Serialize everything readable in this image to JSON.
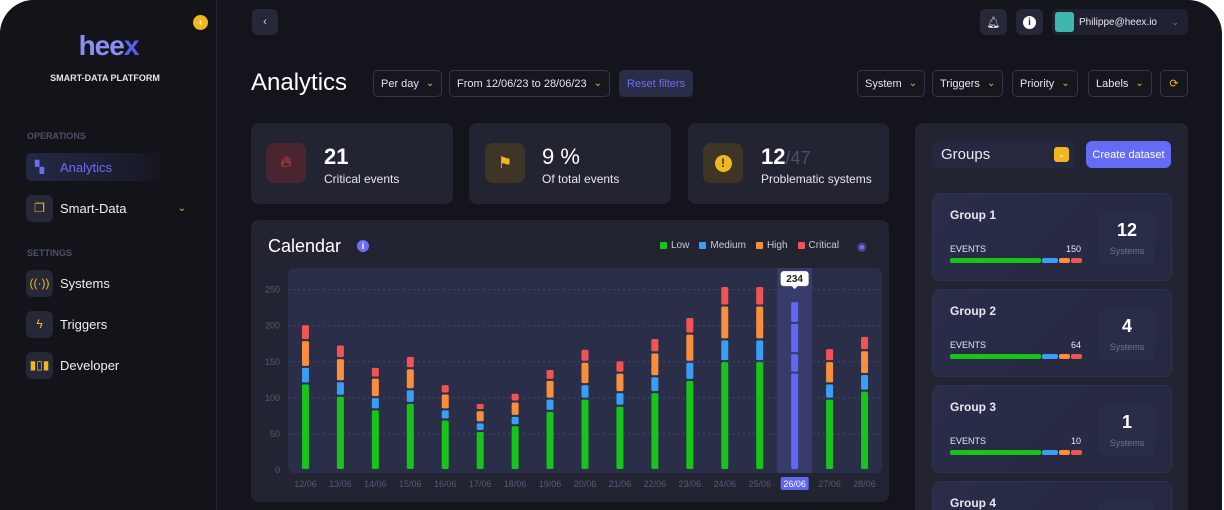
{
  "sidebar": {
    "logo": "hee",
    "logo_x": "x",
    "tagline": "SMART-DATA PLATFORM",
    "sections": {
      "operations": "OPERATIONS",
      "settings": "SETTINGS"
    },
    "items": [
      {
        "label": "Analytics",
        "icon": "analytics-icon"
      },
      {
        "label": "Smart-Data",
        "icon": "smart-data-icon"
      },
      {
        "label": "Systems",
        "icon": "signal-icon"
      },
      {
        "label": "Triggers",
        "icon": "lightning-icon"
      },
      {
        "label": "Developer",
        "icon": "columns-icon"
      }
    ]
  },
  "header": {
    "user": "Philippe@heex.io"
  },
  "page": {
    "title": "Analytics",
    "filters": {
      "period": "Per day",
      "range": "From 12/06/23 to 28/06/23",
      "reset": "Reset filters",
      "system": "System",
      "triggers": "Triggers",
      "priority": "Priority",
      "labels": "Labels"
    }
  },
  "stats": [
    {
      "value": "21",
      "label": "Critical events",
      "color": "#f14c4c"
    },
    {
      "value": "9 %",
      "label": "Of total events",
      "color": "#f0b720"
    },
    {
      "value": "12",
      "total": "/47",
      "label": "Problematic systems",
      "color": "#f0b720"
    }
  ],
  "calendar": {
    "title": "Calendar",
    "legend": [
      "Low",
      "Medium",
      "High",
      "Critical"
    ]
  },
  "chart_data": {
    "type": "bar",
    "stacked": true,
    "categories": [
      "12/06",
      "13/06",
      "14/06",
      "15/06",
      "16/06",
      "17/06",
      "18/06",
      "19/06",
      "20/06",
      "21/06",
      "22/06",
      "23/06",
      "24/06",
      "25/06",
      "26/06",
      "27/06",
      "28/06"
    ],
    "series": [
      {
        "name": "Low",
        "color": "#17c41a",
        "values": [
          120,
          103,
          84,
          93,
          70,
          54,
          62,
          82,
          99,
          89,
          108,
          125,
          151,
          151,
          135,
          99,
          110
        ]
      },
      {
        "name": "Medium",
        "color": "#3b9ef5",
        "values": [
          23,
          20,
          17,
          19,
          14,
          12,
          13,
          17,
          20,
          19,
          22,
          25,
          30,
          30,
          27,
          21,
          23
        ]
      },
      {
        "name": "High",
        "color": "#f98e3c",
        "values": [
          37,
          32,
          27,
          29,
          22,
          17,
          20,
          26,
          31,
          27,
          33,
          39,
          47,
          47,
          42,
          31,
          33
        ]
      },
      {
        "name": "Critical",
        "color": "#f25454",
        "values": [
          22,
          19,
          15,
          17,
          13,
          10,
          12,
          15,
          18,
          17,
          20,
          23,
          27,
          27,
          30,
          18,
          20
        ]
      }
    ],
    "selected": "26/06",
    "selected_color": "#5f68f5",
    "tooltip": "234",
    "yticks": [
      0,
      50,
      100,
      150,
      200,
      250
    ],
    "ylim": [
      0,
      280
    ],
    "grid": true,
    "legend": "top-right"
  },
  "groups": {
    "title": "Groups",
    "create": "Create dataset",
    "events_label": "EVENTS",
    "systems_label": "Systems",
    "items": [
      {
        "name": "Group 1",
        "events": "150",
        "systems": "12"
      },
      {
        "name": "Group 2",
        "events": "64",
        "systems": "4"
      },
      {
        "name": "Group 3",
        "events": "10",
        "systems": "1"
      },
      {
        "name": "Group 4"
      }
    ]
  }
}
